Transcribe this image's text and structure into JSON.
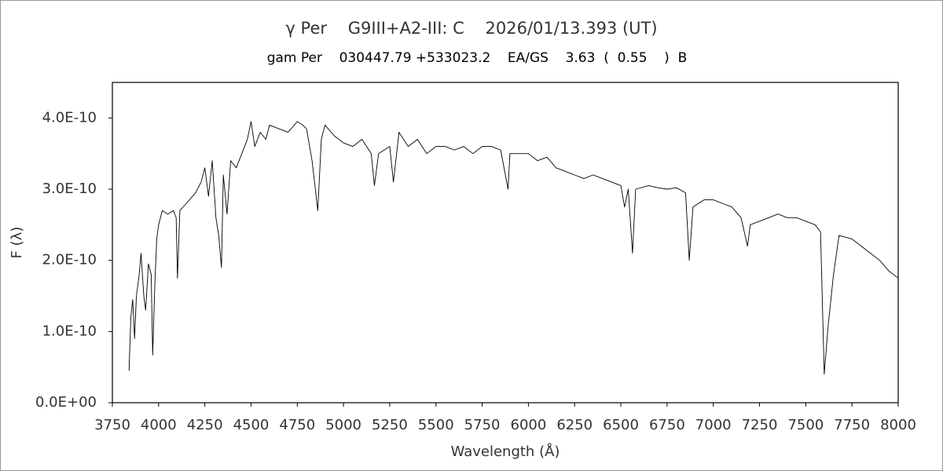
{
  "chart_data": {
    "type": "line",
    "title": "γ Per    G9III+A2-III: C    2026/01/13.393 (UT)",
    "subtitle": "gam Per    030447.79 +533023.2    EA/GS    3.63  (  0.55    )  B",
    "x_label": "Wavelength (Å)",
    "y_label": "F (λ)",
    "color": "#000000",
    "xlim": [
      3750,
      8000
    ],
    "xticks": [
      3750,
      4000,
      4250,
      4500,
      4750,
      5000,
      5250,
      5500,
      5750,
      6000,
      6250,
      6500,
      6750,
      7000,
      7250,
      7500,
      7750,
      8000
    ],
    "ylim": [
      0,
      4.5e-10
    ],
    "yticks": [
      {
        "value": 0,
        "label": "0.0E+00"
      },
      {
        "value": 1e-10,
        "label": "1.0E-10"
      },
      {
        "value": 2e-10,
        "label": "2.0E-10"
      },
      {
        "value": 3e-10,
        "label": "3.0E-10"
      },
      {
        "value": 4e-10,
        "label": "4.0E-10"
      }
    ],
    "x": [
      3840,
      3850,
      3860,
      3870,
      3880,
      3895,
      3905,
      3920,
      3930,
      3945,
      3960,
      3968,
      3980,
      3990,
      4000,
      4020,
      4050,
      4080,
      4095,
      4102,
      4115,
      4150,
      4200,
      4230,
      4250,
      4270,
      4290,
      4310,
      4325,
      4340,
      4350,
      4370,
      4390,
      4420,
      4450,
      4480,
      4500,
      4520,
      4550,
      4580,
      4600,
      4650,
      4700,
      4750,
      4780,
      4800,
      4830,
      4861,
      4880,
      4900,
      4950,
      5000,
      5050,
      5100,
      5150,
      5167,
      5190,
      5250,
      5270,
      5300,
      5350,
      5400,
      5450,
      5500,
      5550,
      5600,
      5650,
      5700,
      5750,
      5800,
      5850,
      5890,
      5900,
      5950,
      6000,
      6050,
      6100,
      6150,
      6200,
      6250,
      6300,
      6350,
      6400,
      6450,
      6500,
      6520,
      6540,
      6563,
      6580,
      6650,
      6700,
      6750,
      6800,
      6850,
      6870,
      6890,
      6950,
      7000,
      7050,
      7100,
      7150,
      7185,
      7200,
      7250,
      7300,
      7350,
      7400,
      7450,
      7500,
      7550,
      7580,
      7600,
      7620,
      7650,
      7680,
      7750,
      7800,
      7850,
      7900,
      7950,
      8000
    ],
    "values": [
      4.5e-11,
      1.2e-10,
      1.45e-10,
      9e-11,
      1.5e-10,
      1.8e-10,
      2.1e-10,
      1.5e-10,
      1.3e-10,
      1.95e-10,
      1.8e-10,
      6.7e-11,
      1.7e-10,
      2.3e-10,
      2.5e-10,
      2.7e-10,
      2.65e-10,
      2.7e-10,
      2.6e-10,
      1.75e-10,
      2.7e-10,
      2.8e-10,
      2.95e-10,
      3.1e-10,
      3.3e-10,
      2.9e-10,
      3.4e-10,
      2.6e-10,
      2.35e-10,
      1.9e-10,
      3.2e-10,
      2.65e-10,
      3.4e-10,
      3.3e-10,
      3.5e-10,
      3.7e-10,
      3.95e-10,
      3.6e-10,
      3.8e-10,
      3.7e-10,
      3.9e-10,
      3.85e-10,
      3.8e-10,
      3.95e-10,
      3.9e-10,
      3.85e-10,
      3.4e-10,
      2.7e-10,
      3.7e-10,
      3.9e-10,
      3.75e-10,
      3.65e-10,
      3.6e-10,
      3.7e-10,
      3.5e-10,
      3.05e-10,
      3.5e-10,
      3.6e-10,
      3.1e-10,
      3.8e-10,
      3.6e-10,
      3.7e-10,
      3.5e-10,
      3.6e-10,
      3.6e-10,
      3.55e-10,
      3.6e-10,
      3.5e-10,
      3.6e-10,
      3.6e-10,
      3.55e-10,
      3e-10,
      3.5e-10,
      3.5e-10,
      3.5e-10,
      3.4e-10,
      3.45e-10,
      3.3e-10,
      3.25e-10,
      3.2e-10,
      3.15e-10,
      3.2e-10,
      3.15e-10,
      3.1e-10,
      3.05e-10,
      2.75e-10,
      3e-10,
      2.1e-10,
      3e-10,
      3.05e-10,
      3.02e-10,
      3e-10,
      3.02e-10,
      2.95e-10,
      2e-10,
      2.75e-10,
      2.85e-10,
      2.85e-10,
      2.8e-10,
      2.75e-10,
      2.6e-10,
      2.2e-10,
      2.5e-10,
      2.55e-10,
      2.6e-10,
      2.65e-10,
      2.6e-10,
      2.6e-10,
      2.55e-10,
      2.5e-10,
      2.4e-10,
      4e-11,
      1.05e-10,
      1.8e-10,
      2.35e-10,
      2.3e-10,
      2.2e-10,
      2.1e-10,
      2e-10,
      1.85e-10,
      1.75e-10
    ]
  }
}
